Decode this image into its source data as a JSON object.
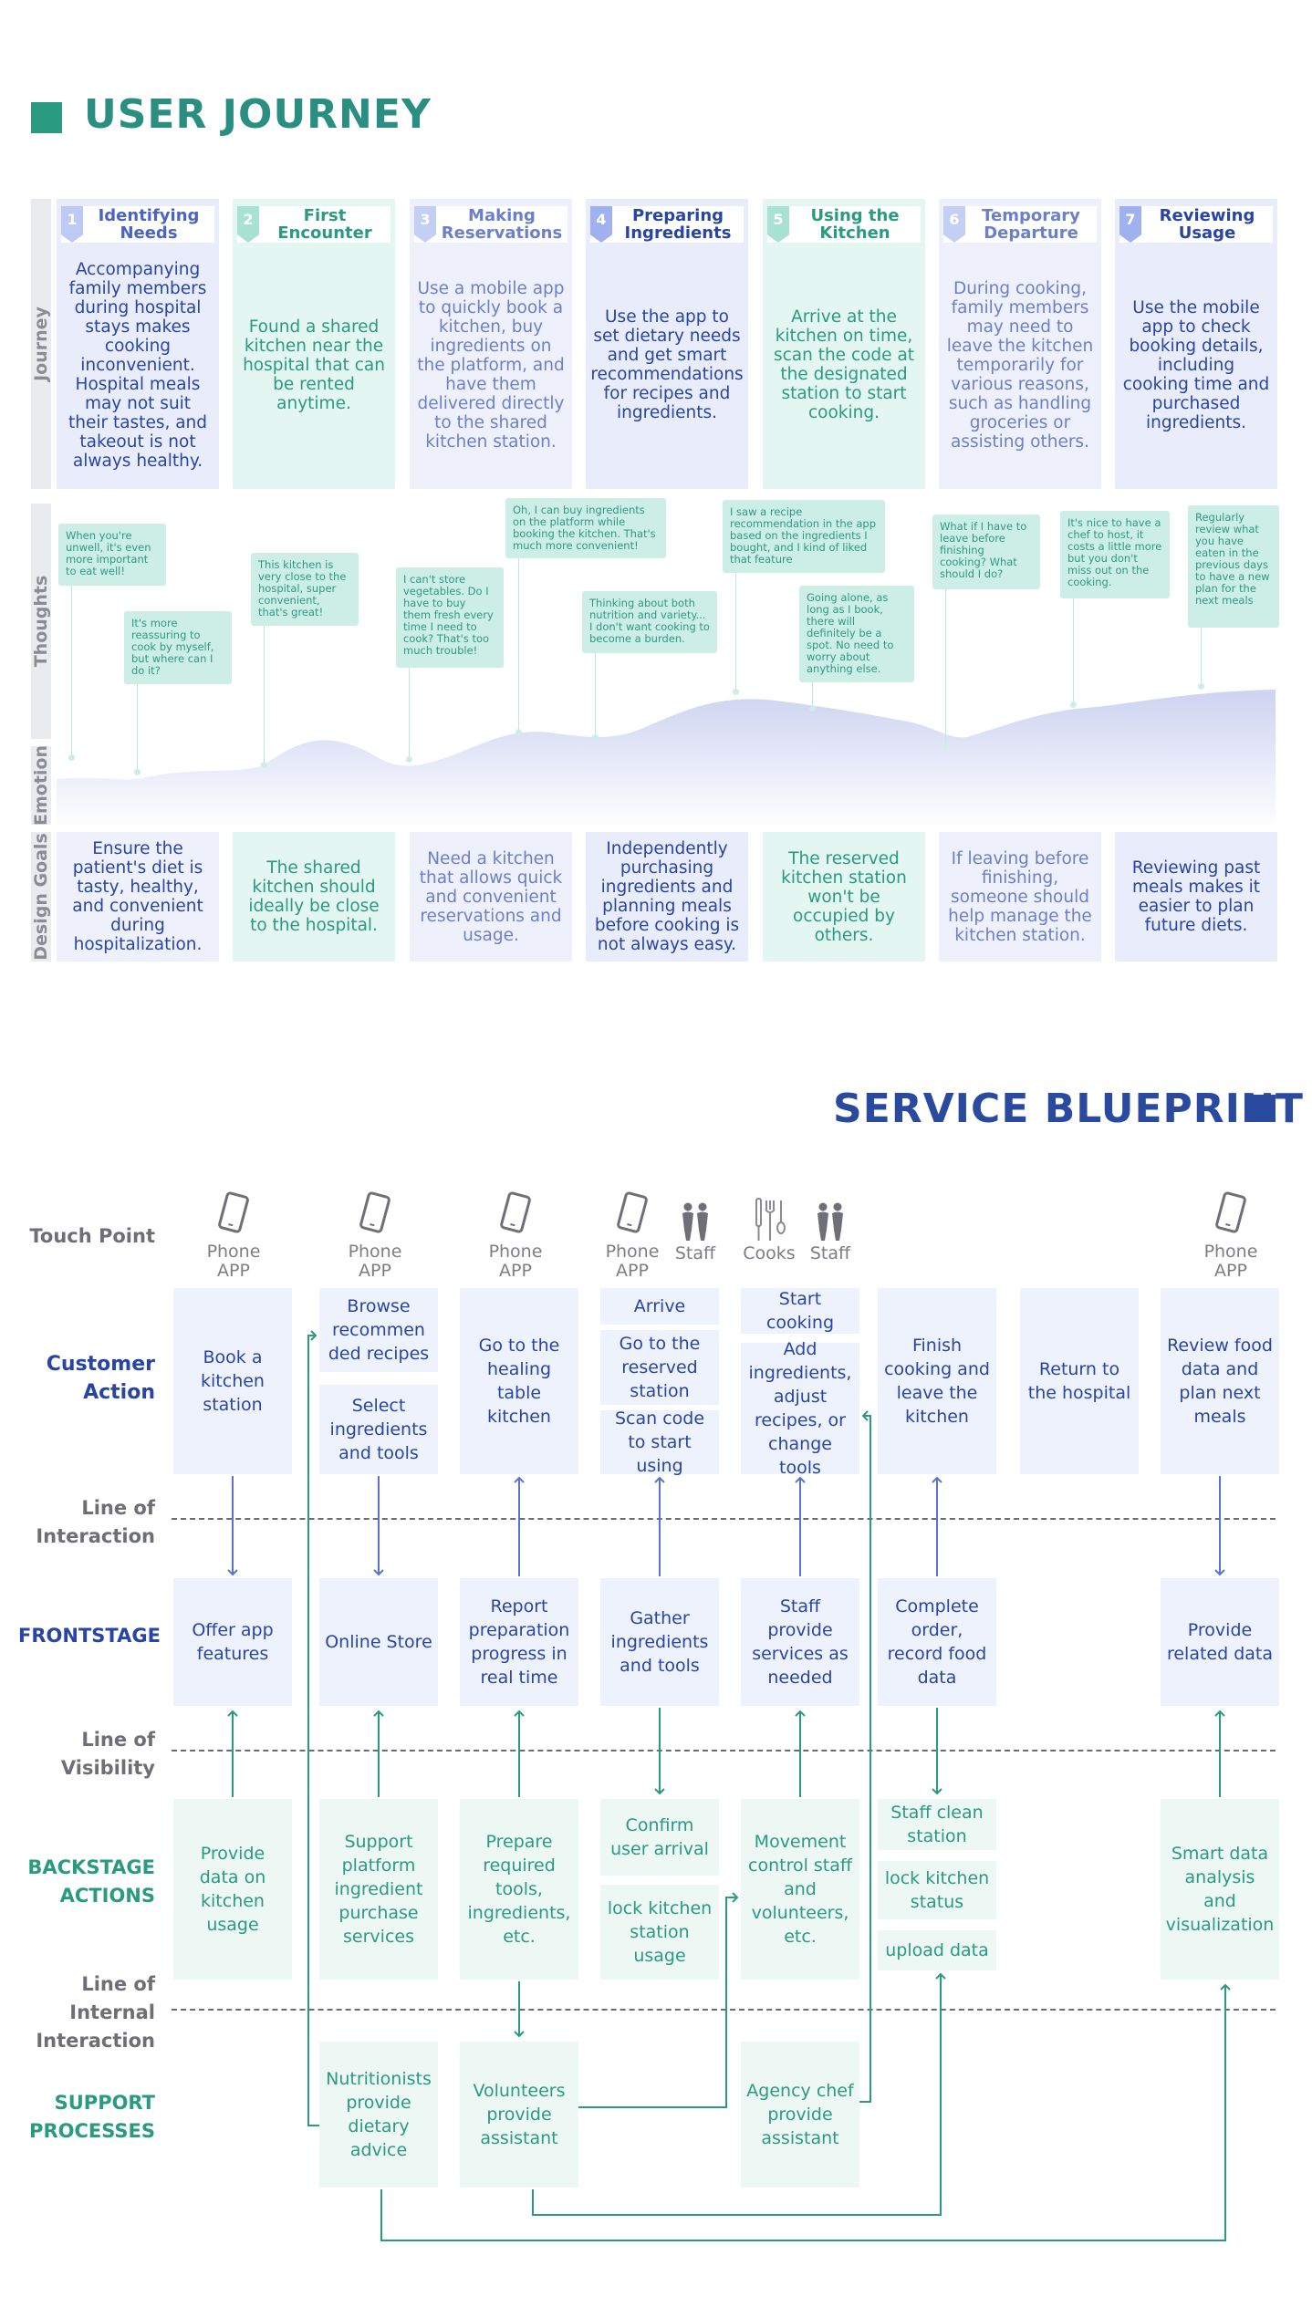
{
  "journey": {
    "title": "USER JOURNEY",
    "side_labels": {
      "journey": "Journey",
      "thoughts": "Thoughts",
      "emotion": "Emotion",
      "design_goals": "Design Goals"
    },
    "stages": [
      {
        "num": "1",
        "title": "Identifying Needs",
        "text": "Accompanying family members during hospital stays makes cooking inconvenient. Hospital meals may not suit their tastes, and takeout is not always healthy."
      },
      {
        "num": "2",
        "title": "First Encounter",
        "text": "Found a shared kitchen near the hospital that can be rented anytime."
      },
      {
        "num": "3",
        "title": "Making Reservations",
        "text": "Use a mobile app to quickly book a kitchen, buy ingredients on the platform, and have them delivered directly to the shared kitchen station."
      },
      {
        "num": "4",
        "title": "Preparing Ingredients",
        "text": "Use the app to set dietary needs and get smart recommendations for recipes and ingredients."
      },
      {
        "num": "5",
        "title": "Using the Kitchen",
        "text": "Arrive at the kitchen on time, scan the code at the designated station to start cooking."
      },
      {
        "num": "6",
        "title": "Temporary Departure",
        "text": "During cooking, family members may need to leave the kitchen temporarily for various reasons, such as handling groceries or assisting others."
      },
      {
        "num": "7",
        "title": "Reviewing Usage",
        "text": "Use the mobile app to check booking details, including cooking time and purchased ingredients."
      }
    ],
    "thoughts": [
      "When you're unwell, it's even more important to eat well!",
      "It's more reassuring to cook by myself, but where can I do it?",
      "This kitchen is very close to the hospital, super convenient, that's great!",
      "I can't store vegetables. Do I have to buy them fresh every time I need to cook? That's too much trouble!",
      "Oh, I can buy ingredients on the platform while booking the kitchen. That's much more convenient!",
      "Thinking about both nutrition and variety... I don't want cooking to become a burden.",
      "I saw a recipe recommendation in the app based on the ingredients I bought, and I kind of liked that feature",
      "Going alone, as long as I book, there will definitely be a spot. No need to worry about anything else.",
      "What if I have to leave before finishing cooking? What should I do?",
      "It's nice to have a chef to host, it costs a little more but you don't miss out on the cooking.",
      "Regularly review what you have eaten in the previous days to have a new plan for the next meals"
    ],
    "design_goals": [
      "Ensure the patient's diet is tasty, healthy, and convenient during hospitalization.",
      "The shared kitchen should ideally be close to the hospital.",
      "Need a kitchen that allows quick and convenient reservations and usage.",
      "Independently purchasing ingredients and planning meals before cooking is not always easy.",
      "The reserved kitchen station won't be occupied by others.",
      "If leaving before finishing, someone should help manage the kitchen station.",
      "Reviewing past meals makes it easier to plan future diets."
    ]
  },
  "blueprint": {
    "title": "SERVICE BLUEPRINT",
    "row_labels": {
      "touch_point": "Touch Point",
      "customer_action": [
        "Customer",
        "Action"
      ],
      "line_interaction": [
        "Line of",
        "Interaction"
      ],
      "frontstage": "FRONTSTAGE",
      "line_visibility": [
        "Line of",
        "Visibility"
      ],
      "backstage": [
        "BACKSTAGE",
        "ACTIONS"
      ],
      "line_internal": [
        "Line of",
        "Internal",
        "Interaction"
      ],
      "support": [
        "SUPPORT",
        "PROCESSES"
      ]
    },
    "touch_points": {
      "phone_app": [
        "Phone",
        "APP"
      ],
      "staff": "Staff",
      "cooks": "Cooks"
    },
    "customer_actions": {
      "c1": "Book a kitchen station",
      "c2a": "Browse recommen ded recipes",
      "c2b": "Select ingredients and tools",
      "c3": "Go to the healing table kitchen",
      "c4a": "Arrive",
      "c4b": "Go to the reserved station",
      "c4c": "Scan code to start using",
      "c5a": "Start cooking",
      "c5b": "Add ingredients, adjust recipes, or change tools",
      "c6": "Finish cooking and leave the kitchen",
      "c7": "Return to the hospital",
      "c8": "Review food data and plan next meals"
    },
    "frontstage": {
      "f1": "Offer app features",
      "f2": "Online Store",
      "f3": "Report preparation progress in real time",
      "f4": "Gather ingredients and tools",
      "f5": "Staff provide services as needed",
      "f6": "Complete order, record food data",
      "f8": "Provide related data"
    },
    "backstage": {
      "b1": "Provide data on kitchen usage",
      "b2": "Support platform ingredient purchase services",
      "b3": "Prepare required tools, ingredients, etc.",
      "b4a": "Confirm user arrival",
      "b4b": "lock kitchen station usage",
      "b5": "Movement control staff and volunteers, etc.",
      "b6a": "Staff clean station",
      "b6b": "lock kitchen status",
      "b6c": "upload data",
      "b8": "Smart data analysis and visualization"
    },
    "support": {
      "s2": "Nutritionists provide dietary advice",
      "s3": "Volunteers provide assistant",
      "s5": "Agency chef provide assistant"
    }
  },
  "colors": {
    "teal": "#2a9a80",
    "navy": "#2845a6",
    "blue_bg": "#e8ecfb",
    "green_bg": "#e3f6f1"
  }
}
